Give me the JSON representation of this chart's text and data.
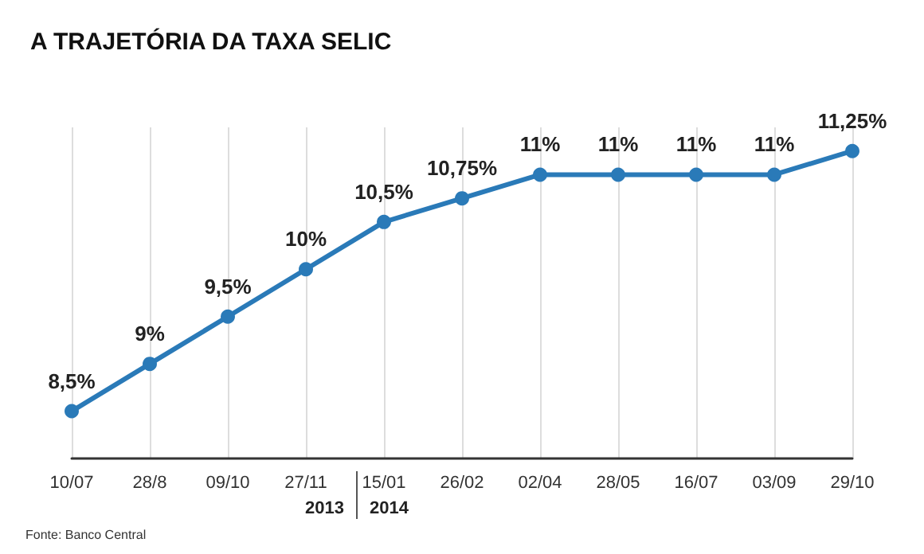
{
  "chart_data": {
    "type": "line",
    "title": "A TRAJETÓRIA DA TAXA SELIC",
    "categories": [
      "10/07",
      "28/8",
      "09/10",
      "27/11",
      "15/01",
      "26/02",
      "02/04",
      "28/05",
      "16/07",
      "03/09",
      "29/10"
    ],
    "series": [
      {
        "color": "#2a7ab8",
        "values": [
          8.5,
          9,
          9.5,
          10,
          10.5,
          10.75,
          11,
          11,
          11,
          11,
          11.25
        ],
        "value_labels": [
          "8,5%",
          "9%",
          "9,5%",
          "10%",
          "10,5%",
          "10,75%",
          "11%",
          "11%",
          "11%",
          "11%",
          "11,25%"
        ]
      }
    ],
    "ylim": [
      8,
      11.5
    ],
    "tick_labels": "x",
    "grid": "x",
    "marker": "circle",
    "line_style": "solid",
    "annotations": [
      "2013",
      "2014",
      "Fonte: Banco Central"
    ]
  }
}
